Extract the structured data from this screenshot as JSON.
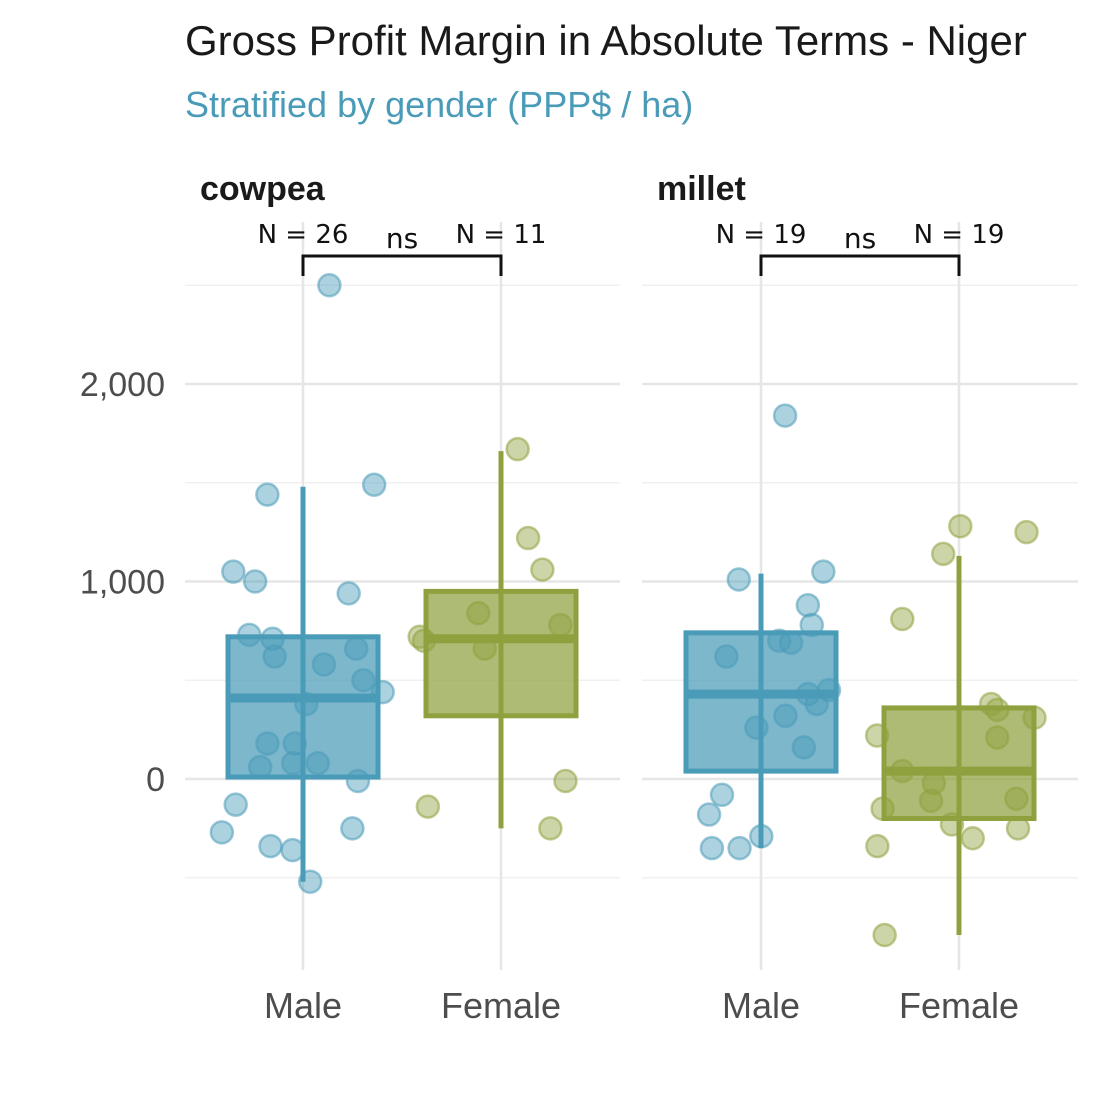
{
  "chart_data": {
    "type": "box",
    "title": "Gross Profit Margin in Absolute Terms - Niger",
    "subtitle": "Stratified by gender (PPP$ / ha)",
    "xlabel": "",
    "ylabel": "",
    "ylim": [
      -950,
      2650
    ],
    "y_ticks": [
      0,
      1000,
      2000
    ],
    "y_tick_labels": [
      "0",
      "1,000",
      "2,000"
    ],
    "grid": true,
    "categories": [
      "Male",
      "Female"
    ],
    "colors": {
      "Male": "#4a9bb8",
      "Female": "#8fa13e",
      "subtitle": "#4a9bb8"
    },
    "facets": [
      {
        "name": "cowpea",
        "groups": [
          {
            "category": "Male",
            "n_label": "N = 26",
            "box": {
              "whisker_low": -520,
              "q1": 10,
              "median": 410,
              "q3": 720,
              "whisker_high": 1480
            },
            "points": [
              2500,
              1490,
              1440,
              1050,
              1000,
              940,
              730,
              710,
              660,
              620,
              580,
              500,
              440,
              380,
              180,
              180,
              80,
              80,
              60,
              -10,
              -130,
              -250,
              -270,
              -340,
              -360,
              -520
            ]
          },
          {
            "category": "Female",
            "n_label": "N = 11",
            "box": {
              "whisker_low": -250,
              "q1": 320,
              "median": 710,
              "q3": 950,
              "whisker_high": 1660
            },
            "points": [
              1670,
              1220,
              1060,
              840,
              780,
              720,
              700,
              660,
              -10,
              -140,
              -250
            ]
          }
        ],
        "comparison": "ns"
      },
      {
        "name": "millet",
        "groups": [
          {
            "category": "Male",
            "n_label": "N = 19",
            "box": {
              "whisker_low": -350,
              "q1": 40,
              "median": 430,
              "q3": 740,
              "whisker_high": 1040
            },
            "points": [
              1840,
              1050,
              1010,
              880,
              780,
              700,
              690,
              620,
              450,
              430,
              380,
              320,
              260,
              160,
              -80,
              -180,
              -290,
              -350,
              -350
            ]
          },
          {
            "category": "Female",
            "n_label": "N = 19",
            "box": {
              "whisker_low": -790,
              "q1": -200,
              "median": 40,
              "q3": 360,
              "whisker_high": 1130
            },
            "points": [
              1280,
              1250,
              1140,
              810,
              380,
              350,
              310,
              220,
              210,
              40,
              -20,
              -100,
              -110,
              -150,
              -230,
              -250,
              -300,
              -340,
              -790
            ]
          }
        ],
        "comparison": "ns"
      }
    ]
  }
}
